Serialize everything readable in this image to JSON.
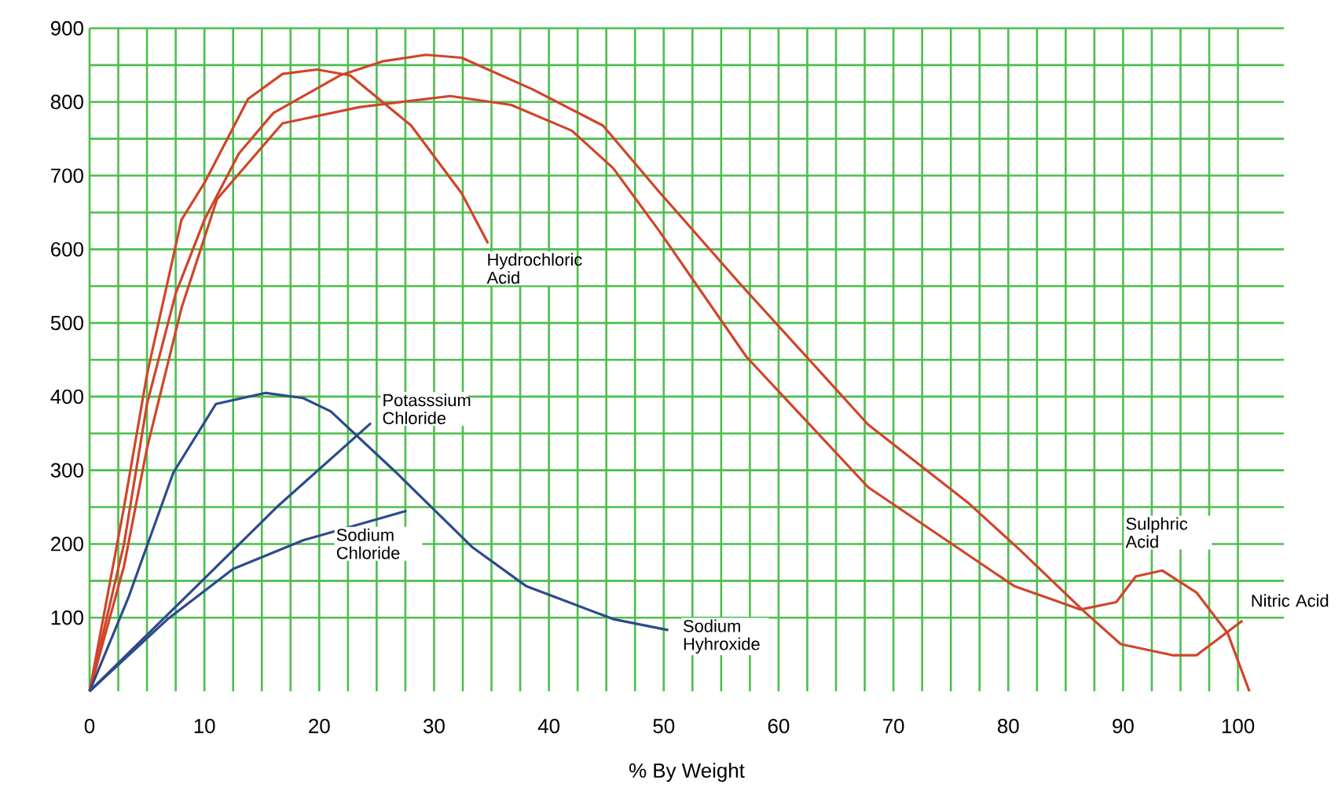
{
  "chart_data": {
    "type": "line",
    "xlabel": "% By Weight",
    "xlim": [
      0,
      104
    ],
    "ylim": [
      0,
      900
    ],
    "xticks": [
      0,
      10,
      20,
      30,
      40,
      50,
      60,
      70,
      80,
      90,
      100
    ],
    "yticks": [
      100,
      200,
      300,
      400,
      500,
      600,
      700,
      800,
      900
    ],
    "grid": true,
    "marker": "none",
    "line_style": "solid",
    "series": [
      {
        "name": "Hydrochloric Acid",
        "color": "#d0452a",
        "x": [
          0,
          3,
          5,
          8,
          10,
          13.8,
          16.8,
          19.8,
          22.7,
          28,
          32.4,
          34.7
        ],
        "values": [
          0,
          250,
          430,
          640,
          690,
          804,
          838,
          844,
          836,
          768,
          676,
          608
        ]
      },
      {
        "name": "Nitric Acid",
        "color": "#d0452a",
        "x": [
          0,
          3,
          5,
          7.5,
          10,
          13,
          16,
          21.8,
          25.5,
          29.3,
          32.4,
          38.6,
          44.7,
          49.6,
          56.6,
          67.8,
          76.5,
          81,
          86.7,
          89.8,
          94.3,
          96.4,
          100.4
        ],
        "values": [
          0,
          200,
          390,
          540,
          640,
          730,
          785,
          836,
          855,
          864,
          860,
          817,
          768,
          678,
          554,
          362,
          256,
          192,
          107,
          64,
          49,
          49,
          96
        ]
      },
      {
        "name": "Sulphric Acid",
        "color": "#d0452a",
        "x": [
          0,
          3,
          5,
          8,
          11.1,
          16.8,
          23.5,
          31.4,
          36.7,
          42,
          45.6,
          49.6,
          57.2,
          67.8,
          80.5,
          86.3,
          89.4,
          91.1,
          93.4,
          96.4,
          99.1,
          101
        ],
        "values": [
          0,
          170,
          330,
          520,
          668,
          771,
          793,
          808,
          796,
          761,
          710,
          625,
          454,
          277,
          143,
          111,
          121,
          156,
          164,
          134,
          79,
          0
        ]
      },
      {
        "name": "Sodium Hyhroxide",
        "color": "#2d4a8a",
        "x": [
          0,
          3.4,
          7.3,
          11,
          15.3,
          18.6,
          21,
          26.7,
          33.3,
          38,
          45.6,
          50.4
        ],
        "values": [
          0,
          128,
          297,
          390,
          405,
          398,
          380,
          297,
          196,
          143,
          98,
          83
        ]
      },
      {
        "name": "Potasssium Chloride",
        "color": "#2d4a8a",
        "x": [
          0,
          6.8,
          16.3,
          24.5
        ],
        "values": [
          0,
          104,
          250,
          364
        ]
      },
      {
        "name": "Sodium Chloride",
        "color": "#2d4a8a",
        "x": [
          0,
          6.8,
          12.5,
          18.6,
          27.6
        ],
        "values": [
          0,
          98,
          166,
          205,
          245
        ]
      }
    ]
  }
}
